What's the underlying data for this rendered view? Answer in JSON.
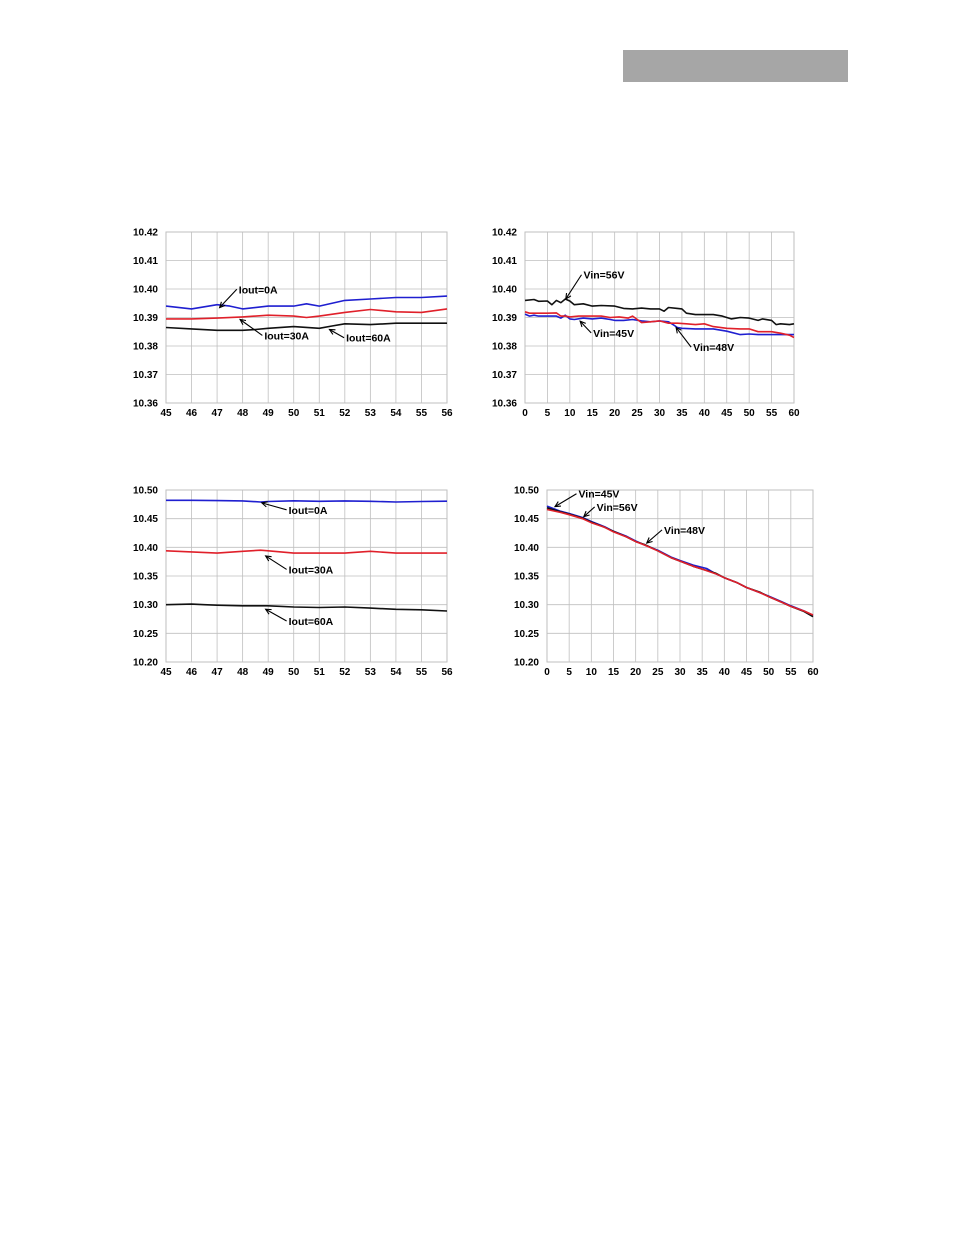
{
  "header": {
    "bar_color": "#a6a6a6"
  },
  "colors": {
    "blue": "#1f1fd0",
    "red": "#e0202a",
    "black": "#111111",
    "grid": "#bfbfbf"
  },
  "chart_data": [
    {
      "id": "c1",
      "type": "line",
      "title": "",
      "xlabel": "",
      "ylabel": "",
      "xlim": [
        45,
        56
      ],
      "ylim": [
        10.36,
        10.42
      ],
      "xticks": [
        "45",
        "46",
        "47",
        "48",
        "49",
        "50",
        "51",
        "52",
        "53",
        "54",
        "55",
        "56"
      ],
      "yticks": [
        "10.36",
        "10.37",
        "10.38",
        "10.39",
        "10.40",
        "10.41",
        "10.42"
      ],
      "grid": true,
      "series": [
        {
          "color": "#1f1fd0",
          "x": [
            45,
            46,
            47,
            47.5,
            48,
            49,
            50,
            50.5,
            51,
            52,
            53,
            54,
            55,
            56
          ],
          "y": [
            10.394,
            10.393,
            10.3945,
            10.394,
            10.393,
            10.394,
            10.394,
            10.3948,
            10.394,
            10.396,
            10.3965,
            10.397,
            10.397,
            10.3975
          ]
        },
        {
          "color": "#e0202a",
          "x": [
            45,
            46,
            47,
            48,
            49,
            50,
            50.5,
            51,
            52,
            53,
            54,
            55,
            56
          ],
          "y": [
            10.3895,
            10.3895,
            10.3898,
            10.3902,
            10.3908,
            10.3905,
            10.39,
            10.3905,
            10.3918,
            10.3928,
            10.392,
            10.3918,
            10.393
          ]
        },
        {
          "color": "#111111",
          "x": [
            45,
            46,
            47,
            48,
            48.5,
            49,
            50,
            51,
            51.5,
            52,
            53,
            54,
            55,
            56
          ],
          "y": [
            10.3865,
            10.386,
            10.3855,
            10.3855,
            10.3858,
            10.3862,
            10.3868,
            10.3862,
            10.387,
            10.3878,
            10.3875,
            10.388,
            10.388,
            10.388
          ]
        }
      ],
      "annotations": [
        {
          "text": "Iout=0A",
          "x": 47.85,
          "y": 10.3985,
          "ax": 47.1,
          "ay": 10.3935
        },
        {
          "text": "Iout=30A",
          "x": 48.85,
          "y": 10.3823,
          "ax": 47.9,
          "ay": 10.3893
        },
        {
          "text": "Iout=60A",
          "x": 52.05,
          "y": 10.3815,
          "ax": 51.4,
          "ay": 10.3858
        }
      ]
    },
    {
      "id": "c2",
      "type": "line",
      "title": "",
      "xlabel": "",
      "ylabel": "",
      "xlim": [
        0,
        60
      ],
      "ylim": [
        10.36,
        10.42
      ],
      "xticks": [
        "0",
        "5",
        "10",
        "15",
        "20",
        "25",
        "30",
        "35",
        "40",
        "45",
        "50",
        "55",
        "60"
      ],
      "yticks": [
        "10.36",
        "10.37",
        "10.38",
        "10.39",
        "10.40",
        "10.41",
        "10.42"
      ],
      "grid": true,
      "series": [
        {
          "color": "#111111",
          "x": [
            0,
            2,
            3,
            5,
            6,
            7,
            8,
            9,
            10,
            11,
            13,
            15,
            17,
            20,
            22,
            24,
            26,
            28,
            30,
            31,
            32,
            34,
            35,
            36,
            38,
            40,
            42,
            44,
            46,
            48,
            50,
            52,
            53,
            55,
            56,
            57,
            59,
            60
          ],
          "y": [
            10.396,
            10.3963,
            10.3957,
            10.3958,
            10.3945,
            10.396,
            10.3952,
            10.3965,
            10.3958,
            10.3945,
            10.3948,
            10.394,
            10.3942,
            10.394,
            10.3932,
            10.393,
            10.3933,
            10.393,
            10.393,
            10.3922,
            10.3935,
            10.3932,
            10.393,
            10.3915,
            10.391,
            10.391,
            10.391,
            10.3905,
            10.3895,
            10.39,
            10.3898,
            10.389,
            10.3895,
            10.389,
            10.3875,
            10.3878,
            10.3875,
            10.3878
          ]
        },
        {
          "color": "#1f1fd0",
          "x": [
            0,
            1,
            2,
            3,
            5,
            7,
            8,
            9,
            10,
            11,
            13,
            15,
            17,
            19,
            20,
            22,
            24,
            26,
            28,
            30,
            32,
            33,
            34,
            35,
            38,
            40,
            42,
            45,
            48,
            50,
            52,
            55,
            57,
            60
          ],
          "y": [
            10.3912,
            10.3905,
            10.3908,
            10.3905,
            10.3905,
            10.3905,
            10.3898,
            10.3908,
            10.3895,
            10.3893,
            10.3898,
            10.3895,
            10.3898,
            10.3893,
            10.389,
            10.389,
            10.3893,
            10.3888,
            10.3885,
            10.3888,
            10.3885,
            10.3875,
            10.3865,
            10.3862,
            10.386,
            10.386,
            10.386,
            10.3852,
            10.384,
            10.3842,
            10.384,
            10.384,
            10.384,
            10.384
          ]
        },
        {
          "color": "#e0202a",
          "x": [
            0,
            1,
            3,
            5,
            7,
            8,
            9,
            10,
            12,
            15,
            17,
            19,
            21,
            23,
            24,
            26,
            28,
            30,
            32,
            34,
            36,
            38,
            40,
            42,
            45,
            48,
            50,
            52,
            55,
            57,
            59,
            60
          ],
          "y": [
            10.392,
            10.3915,
            10.3915,
            10.3915,
            10.3916,
            10.3905,
            10.3905,
            10.3902,
            10.3905,
            10.3905,
            10.3905,
            10.39,
            10.3902,
            10.3898,
            10.3905,
            10.3882,
            10.3885,
            10.3888,
            10.388,
            10.388,
            10.3878,
            10.3875,
            10.3878,
            10.3868,
            10.3862,
            10.386,
            10.386,
            10.385,
            10.385,
            10.3845,
            10.3838,
            10.383
          ]
        }
      ],
      "annotations": [
        {
          "text": "Vin=56V",
          "x": 13.05,
          "y": 10.4036,
          "ax": 9.1,
          "ay": 10.3965
        },
        {
          "text": "Vin=45V",
          "x": 15.2,
          "y": 10.3832,
          "ax": 12.3,
          "ay": 10.3887
        },
        {
          "text": "Vin=48V",
          "x": 37.5,
          "y": 10.3782,
          "ax": 33.7,
          "ay": 10.3865
        }
      ]
    },
    {
      "id": "c3",
      "type": "line",
      "title": "",
      "xlabel": "",
      "ylabel": "",
      "xlim": [
        45,
        56
      ],
      "ylim": [
        10.2,
        10.5
      ],
      "xticks": [
        "45",
        "46",
        "47",
        "48",
        "49",
        "50",
        "51",
        "52",
        "53",
        "54",
        "55",
        "56"
      ],
      "yticks": [
        "10.20",
        "10.25",
        "10.30",
        "10.35",
        "10.40",
        "10.45",
        "10.50"
      ],
      "grid": true,
      "series": [
        {
          "color": "#1f1fd0",
          "x": [
            45,
            46,
            47,
            48,
            48.7,
            49,
            50,
            51,
            52,
            53,
            54,
            55,
            56
          ],
          "y": [
            10.482,
            10.482,
            10.4815,
            10.481,
            10.479,
            10.48,
            10.4812,
            10.4803,
            10.481,
            10.4803,
            10.479,
            10.48,
            10.4805
          ]
        },
        {
          "color": "#e0202a",
          "x": [
            45,
            46,
            47,
            48,
            48.7,
            49,
            50,
            51,
            52,
            53,
            54,
            55,
            56
          ],
          "y": [
            10.394,
            10.392,
            10.39,
            10.393,
            10.395,
            10.394,
            10.39,
            10.39,
            10.39,
            10.393,
            10.39,
            10.39,
            10.39
          ]
        },
        {
          "color": "#111111",
          "x": [
            45,
            46,
            46.5,
            47,
            48,
            49,
            50,
            51,
            52,
            53,
            54,
            55,
            56
          ],
          "y": [
            10.3,
            10.301,
            10.3,
            10.299,
            10.298,
            10.298,
            10.296,
            10.295,
            10.296,
            10.294,
            10.292,
            10.291,
            10.289
          ]
        }
      ],
      "annotations": [
        {
          "text": "Iout=0A",
          "x": 49.8,
          "y": 10.4585,
          "ax": 48.75,
          "ay": 10.4775
        },
        {
          "text": "Iout=30A",
          "x": 49.8,
          "y": 10.3545,
          "ax": 48.9,
          "ay": 10.385
        },
        {
          "text": "Iout=60A",
          "x": 49.8,
          "y": 10.2645,
          "ax": 48.9,
          "ay": 10.292
        }
      ]
    },
    {
      "id": "c4",
      "type": "line",
      "title": "",
      "xlabel": "",
      "ylabel": "",
      "xlim": [
        0,
        60
      ],
      "ylim": [
        10.2,
        10.5
      ],
      "xticks": [
        "0",
        "5",
        "10",
        "15",
        "20",
        "25",
        "30",
        "35",
        "40",
        "45",
        "50",
        "55",
        "60"
      ],
      "yticks": [
        "10.20",
        "10.25",
        "10.30",
        "10.35",
        "10.40",
        "10.45",
        "10.50"
      ],
      "grid": true,
      "series": [
        {
          "color": "#1f1fd0",
          "x": [
            0,
            3,
            5,
            8,
            10,
            13,
            15,
            18,
            20,
            22,
            25,
            28,
            30,
            33,
            35,
            36,
            38,
            40,
            43,
            45,
            48,
            50,
            53,
            55,
            58,
            60
          ],
          "y": [
            10.472,
            10.463,
            10.459,
            10.452,
            10.445,
            10.436,
            10.428,
            10.419,
            10.411,
            10.404,
            10.395,
            10.383,
            10.377,
            10.369,
            10.365,
            10.363,
            10.354,
            10.347,
            10.338,
            10.33,
            10.321,
            10.315,
            10.305,
            10.298,
            10.289,
            10.281
          ]
        },
        {
          "color": "#111111",
          "x": [
            0,
            3,
            5,
            8,
            10,
            13,
            15,
            18,
            20,
            22,
            25,
            28,
            30,
            33,
            35,
            38,
            40,
            43,
            45,
            48,
            50,
            53,
            55,
            58,
            60
          ],
          "y": [
            10.469,
            10.462,
            10.458,
            10.451,
            10.444,
            10.435,
            10.428,
            10.418,
            10.41,
            10.405,
            10.394,
            10.382,
            10.376,
            10.367,
            10.362,
            10.355,
            10.347,
            10.338,
            10.33,
            10.322,
            10.314,
            10.304,
            10.297,
            10.288,
            10.279
          ]
        },
        {
          "color": "#e0202a",
          "x": [
            0,
            3,
            5,
            8,
            10,
            13,
            15,
            18,
            20,
            22,
            25,
            28,
            30,
            33,
            35,
            38,
            40,
            43,
            45,
            48,
            50,
            53,
            55,
            58,
            60
          ],
          "y": [
            10.466,
            10.461,
            10.457,
            10.45,
            10.443,
            10.435,
            10.427,
            10.418,
            10.41,
            10.404,
            10.394,
            10.382,
            10.376,
            10.367,
            10.362,
            10.354,
            10.347,
            10.338,
            10.33,
            10.321,
            10.314,
            10.304,
            10.297,
            10.289,
            10.282
          ]
        }
      ],
      "annotations": [
        {
          "text": "Vin=45V",
          "x": 7.1,
          "y": 10.4865,
          "ax": 1.8,
          "ay": 10.471
        },
        {
          "text": "Vin=56V",
          "x": 11.2,
          "y": 10.4635,
          "ax": 8.3,
          "ay": 10.4535
        },
        {
          "text": "Vin=48V",
          "x": 26.4,
          "y": 10.4235,
          "ax": 22.5,
          "ay": 10.4075
        }
      ]
    }
  ]
}
